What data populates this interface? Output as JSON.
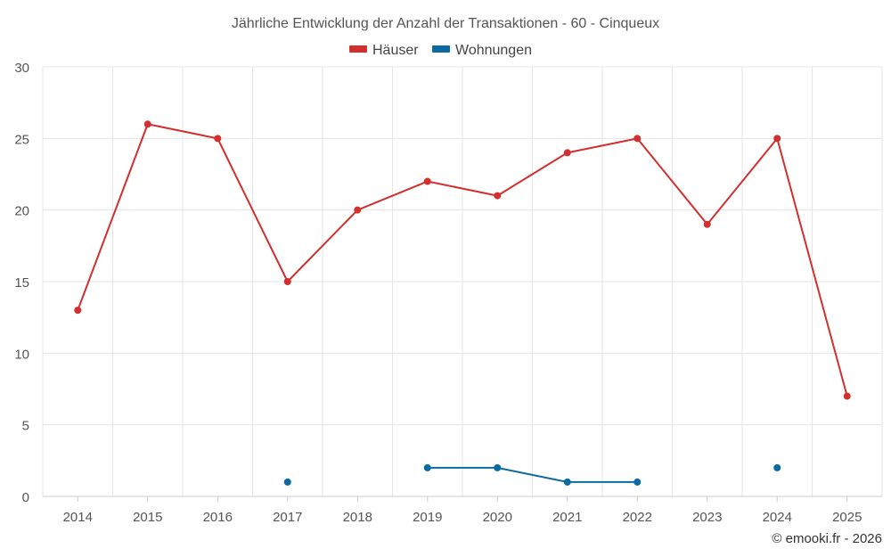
{
  "chart_data": {
    "type": "line",
    "title": "Jährliche Entwicklung der Anzahl der Transaktionen - 60 - Cinqueux",
    "categories": [
      "2014",
      "2015",
      "2016",
      "2017",
      "2018",
      "2019",
      "2020",
      "2021",
      "2022",
      "2023",
      "2024",
      "2025"
    ],
    "series": [
      {
        "name": "Häuser",
        "color": "#d32f2f",
        "values": [
          13,
          26,
          25,
          15,
          20,
          22,
          21,
          24,
          25,
          19,
          25,
          7
        ]
      },
      {
        "name": "Wohnungen",
        "color": "#0b6aa2",
        "values": [
          null,
          null,
          null,
          1,
          null,
          2,
          2,
          1,
          1,
          null,
          2,
          null
        ]
      }
    ],
    "yticks": [
      "0",
      "5",
      "10",
      "15",
      "20",
      "25",
      "30"
    ],
    "ylim": [
      0,
      30
    ],
    "grid": true,
    "legend": "top-center"
  },
  "credit": "© emooki.fr - 2026"
}
